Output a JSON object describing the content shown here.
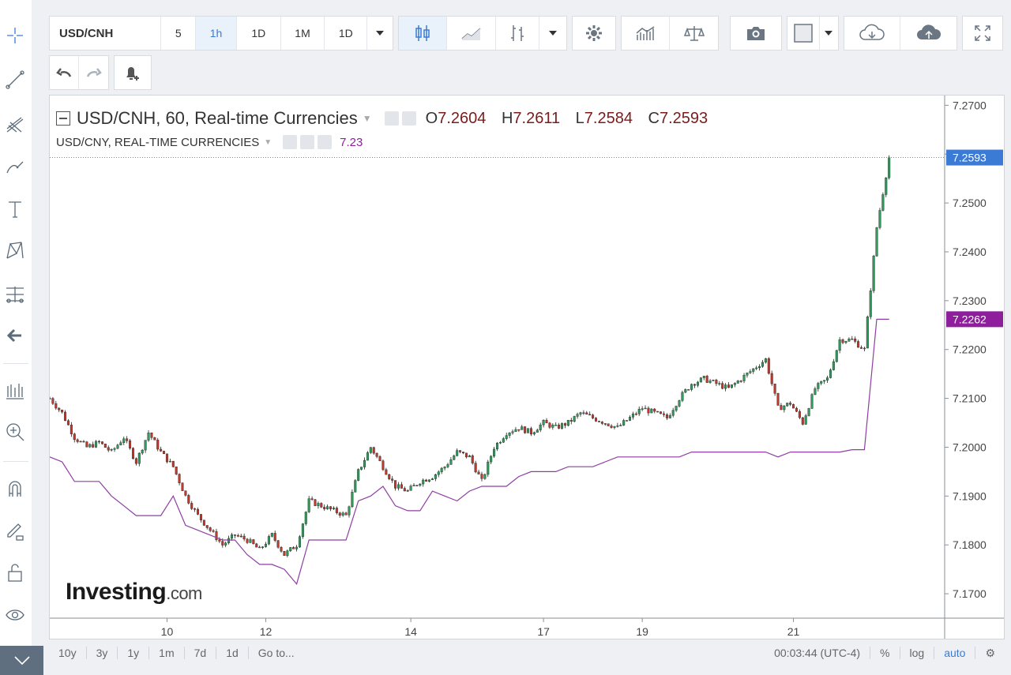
{
  "toolbar": {
    "symbol": "USD/CNH",
    "intervals": [
      "5",
      "1h",
      "1D",
      "1M",
      "1D"
    ],
    "active_interval": "1h"
  },
  "legend": {
    "main_title": "USD/CNH, 60, Real-time Currencies",
    "ohlc": [
      {
        "label": "O",
        "value": "7.2604"
      },
      {
        "label": "H",
        "value": "7.2611"
      },
      {
        "label": "L",
        "value": "7.2584"
      },
      {
        "label": "C",
        "value": "7.2593"
      }
    ],
    "compare_title": "USD/CNY, REAL-TIME CURRENCIES",
    "compare_value": "7.23"
  },
  "logo": {
    "brand": "Investing",
    "suffix": ".com"
  },
  "bottom_bar": {
    "ranges": [
      "10y",
      "3y",
      "1y",
      "1m",
      "7d",
      "1d",
      "Go to..."
    ],
    "clock": "00:03:44 (UTC-4)",
    "percent": "%",
    "log": "log",
    "auto": "auto"
  },
  "colors": {
    "up": "#2e9b5a",
    "down": "#c0392b",
    "compare_line": "#8e3ea3",
    "last_price_badge": "#3b7bd5",
    "compare_badge": "#8e1e9c"
  },
  "chart_data": {
    "type": "candlestick",
    "x_tick_labels": [
      "10",
      "12",
      "14",
      "17",
      "19",
      "21"
    ],
    "y_tick_labels": [
      "7.2700",
      "7.2600",
      "7.2500",
      "7.2400",
      "7.2300",
      "7.2200",
      "7.2100",
      "7.2000",
      "7.1900",
      "7.1800",
      "7.1700"
    ],
    "ylim": [
      7.165,
      7.272
    ],
    "last_price": "7.2593",
    "compare_last": "7.2262",
    "series": [
      {
        "name": "USD/CNH",
        "close_path_points": [
          [
            0,
            7.21
          ],
          [
            4,
            7.207
          ],
          [
            8,
            7.202
          ],
          [
            12,
            7.2
          ],
          [
            16,
            7.201
          ],
          [
            20,
            7.199
          ],
          [
            24,
            7.202
          ],
          [
            28,
            7.197
          ],
          [
            32,
            7.203
          ],
          [
            36,
            7.199
          ],
          [
            40,
            7.196
          ],
          [
            44,
            7.19
          ],
          [
            48,
            7.186
          ],
          [
            52,
            7.183
          ],
          [
            56,
            7.18
          ],
          [
            60,
            7.182
          ],
          [
            64,
            7.181
          ],
          [
            68,
            7.179
          ],
          [
            72,
            7.182
          ],
          [
            76,
            7.178
          ],
          [
            80,
            7.18
          ],
          [
            84,
            7.189
          ],
          [
            88,
            7.188
          ],
          [
            92,
            7.187
          ],
          [
            96,
            7.186
          ],
          [
            100,
            7.195
          ],
          [
            104,
            7.2
          ],
          [
            108,
            7.196
          ],
          [
            112,
            7.192
          ],
          [
            116,
            7.191
          ],
          [
            120,
            7.193
          ],
          [
            124,
            7.194
          ],
          [
            128,
            7.196
          ],
          [
            132,
            7.199
          ],
          [
            136,
            7.198
          ],
          [
            140,
            7.193
          ],
          [
            144,
            7.2
          ],
          [
            148,
            7.203
          ],
          [
            152,
            7.204
          ],
          [
            156,
            7.203
          ],
          [
            160,
            7.205
          ],
          [
            164,
            7.204
          ],
          [
            168,
            7.205
          ],
          [
            172,
            7.207
          ],
          [
            176,
            7.206
          ],
          [
            180,
            7.205
          ],
          [
            184,
            7.204
          ],
          [
            188,
            7.206
          ],
          [
            192,
            7.208
          ],
          [
            196,
            7.207
          ],
          [
            200,
            7.206
          ],
          [
            204,
            7.21
          ],
          [
            208,
            7.213
          ],
          [
            212,
            7.214
          ],
          [
            216,
            7.213
          ],
          [
            220,
            7.212
          ],
          [
            224,
            7.214
          ],
          [
            228,
            7.216
          ],
          [
            232,
            7.218
          ],
          [
            236,
            7.208
          ],
          [
            240,
            7.209
          ],
          [
            244,
            7.205
          ],
          [
            248,
            7.212
          ],
          [
            252,
            7.214
          ],
          [
            256,
            7.222
          ],
          [
            260,
            7.222
          ],
          [
            264,
            7.22
          ],
          [
            268,
            7.245
          ],
          [
            272,
            7.2593
          ]
        ]
      },
      {
        "name": "USD/CNY",
        "points": [
          [
            0,
            7.198
          ],
          [
            4,
            7.197
          ],
          [
            8,
            7.193
          ],
          [
            12,
            7.193
          ],
          [
            16,
            7.193
          ],
          [
            20,
            7.19
          ],
          [
            24,
            7.188
          ],
          [
            28,
            7.186
          ],
          [
            32,
            7.186
          ],
          [
            36,
            7.186
          ],
          [
            40,
            7.19
          ],
          [
            44,
            7.184
          ],
          [
            48,
            7.183
          ],
          [
            52,
            7.182
          ],
          [
            56,
            7.181
          ],
          [
            60,
            7.181
          ],
          [
            64,
            7.178
          ],
          [
            68,
            7.176
          ],
          [
            72,
            7.176
          ],
          [
            76,
            7.175
          ],
          [
            80,
            7.172
          ],
          [
            84,
            7.181
          ],
          [
            88,
            7.181
          ],
          [
            92,
            7.181
          ],
          [
            96,
            7.181
          ],
          [
            100,
            7.189
          ],
          [
            104,
            7.19
          ],
          [
            108,
            7.192
          ],
          [
            112,
            7.188
          ],
          [
            116,
            7.187
          ],
          [
            120,
            7.187
          ],
          [
            124,
            7.191
          ],
          [
            128,
            7.19
          ],
          [
            132,
            7.189
          ],
          [
            136,
            7.191
          ],
          [
            140,
            7.192
          ],
          [
            144,
            7.192
          ],
          [
            148,
            7.192
          ],
          [
            152,
            7.194
          ],
          [
            156,
            7.195
          ],
          [
            160,
            7.195
          ],
          [
            164,
            7.195
          ],
          [
            168,
            7.196
          ],
          [
            172,
            7.196
          ],
          [
            176,
            7.196
          ],
          [
            180,
            7.197
          ],
          [
            184,
            7.198
          ],
          [
            188,
            7.198
          ],
          [
            192,
            7.198
          ],
          [
            196,
            7.198
          ],
          [
            200,
            7.198
          ],
          [
            204,
            7.198
          ],
          [
            208,
            7.199
          ],
          [
            212,
            7.199
          ],
          [
            216,
            7.199
          ],
          [
            220,
            7.199
          ],
          [
            224,
            7.199
          ],
          [
            228,
            7.199
          ],
          [
            232,
            7.199
          ],
          [
            236,
            7.198
          ],
          [
            240,
            7.199
          ],
          [
            244,
            7.199
          ],
          [
            248,
            7.199
          ],
          [
            252,
            7.199
          ],
          [
            256,
            7.199
          ],
          [
            260,
            7.1995
          ],
          [
            264,
            7.1995
          ],
          [
            268,
            7.2262
          ],
          [
            272,
            7.2262
          ]
        ]
      }
    ]
  }
}
